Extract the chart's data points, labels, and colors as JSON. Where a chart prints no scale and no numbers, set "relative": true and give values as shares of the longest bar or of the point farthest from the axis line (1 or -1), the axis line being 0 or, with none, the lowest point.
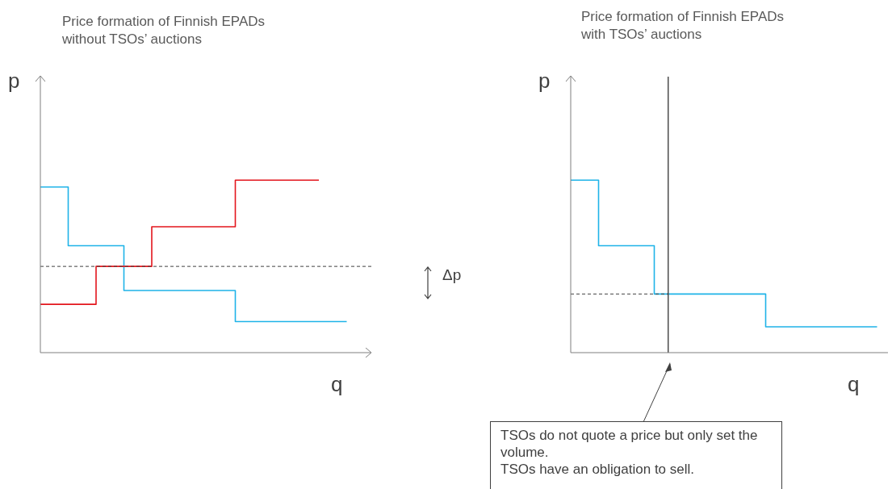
{
  "chart_data": [
    {
      "type": "step",
      "title": "Price formation of Finnish EPADs without TSOs’ auctions",
      "xlabel": "q",
      "ylabel": "p",
      "relative": true,
      "tick_labels": false,
      "categories": [
        null,
        null,
        null,
        null,
        null,
        null,
        null,
        null,
        null,
        null,
        null,
        null
      ],
      "series": [
        {
          "color": "#1fb3e8",
          "values": [
            0.96,
            0.62,
            0.62,
            0.36,
            0.36,
            0.36,
            0.36,
            0.18,
            0.18,
            0.18,
            0.18,
            0.18
          ]
        },
        {
          "color": "#e3161d",
          "values": [
            0.28,
            0.28,
            0.5,
            0.5,
            0.73,
            0.73,
            0.73,
            1,
            1,
            1,
            1,
            null
          ]
        }
      ],
      "ref_lines": [
        {
          "axis": "y",
          "value": 0.5,
          "color": "#404040",
          "line_style": "dashed"
        }
      ],
      "annotations": [
        "Δp"
      ]
    },
    {
      "type": "step",
      "title": "Price formation of Finnish EPADs with TSOs’ auctions",
      "xlabel": "q",
      "ylabel": "p",
      "relative": true,
      "tick_labels": false,
      "categories": [
        null,
        null,
        null,
        null,
        null,
        null,
        null,
        null,
        null,
        null,
        null,
        null,
        null,
        null,
        null,
        null,
        null,
        null,
        null,
        null,
        null,
        null,
        null
      ],
      "series": [
        {
          "color": "#1fb3e8",
          "values": [
            1,
            1,
            0.62,
            0.62,
            0.62,
            0.62,
            0.34,
            0.34,
            0.34,
            0.34,
            0.34,
            0.34,
            0.34,
            0.34,
            0.15,
            0.15,
            0.15,
            0.15,
            0.15,
            0.15,
            0.15,
            0.15,
            0.15
          ]
        }
      ],
      "ref_lines": [
        {
          "axis": "y",
          "value": 0.34,
          "color": "#404040",
          "line_style": "dashed"
        }
      ],
      "annotations": [
        "TSOs do not quote a price but only set the volume.\nTSOs have an obligation to sell."
      ]
    }
  ]
}
